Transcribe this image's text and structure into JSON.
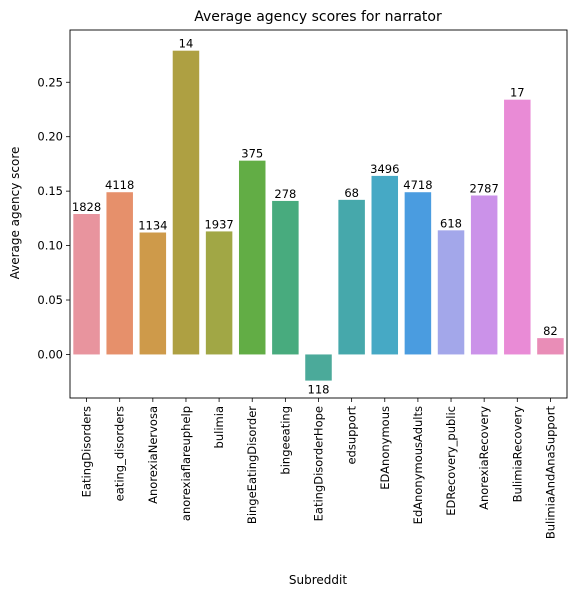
{
  "chart_data": {
    "type": "bar",
    "title": "Average agency scores for narrator",
    "xlabel": "Subreddit",
    "ylabel": "Average agency score",
    "ylim": [
      -0.04,
      0.298
    ],
    "yticks": [
      0.0,
      0.05,
      0.1,
      0.15,
      0.2,
      0.25
    ],
    "ytick_labels": [
      "0.00",
      "0.05",
      "0.10",
      "0.15",
      "0.20",
      "0.25"
    ],
    "grid": false,
    "categories": [
      "EatingDisorders",
      "eating_disorders",
      "AnorexiaNervosa",
      "anorexiaflareuphelp",
      "bulimia",
      "BingeEatingDisorder",
      "bingeeating",
      "EatingDisorderHope",
      "edsupport",
      "EDAnonymous",
      "EdAnonymousAdults",
      "EDRecovery_public",
      "AnorexiaRecovery",
      "BulimiaRecovery",
      "BulimiaAndAnaSupport"
    ],
    "values": [
      0.129,
      0.149,
      0.112,
      0.279,
      0.113,
      0.178,
      0.141,
      -0.024,
      0.142,
      0.164,
      0.149,
      0.114,
      0.146,
      0.234,
      0.015
    ],
    "bar_labels": [
      "1828",
      "4118",
      "1134",
      "14",
      "1937",
      "375",
      "278",
      "118",
      "68",
      "3496",
      "4718",
      "618",
      "2787",
      "17",
      "82"
    ],
    "colors": [
      "#e8949e",
      "#e6906b",
      "#ce9a4a",
      "#aea042",
      "#a1a745",
      "#62ad45",
      "#48ab7e",
      "#4baa9a",
      "#46a8ab",
      "#46a9c5",
      "#4a9ce0",
      "#a3a7ea",
      "#cb92e9",
      "#e98bd6",
      "#e98db7"
    ]
  }
}
